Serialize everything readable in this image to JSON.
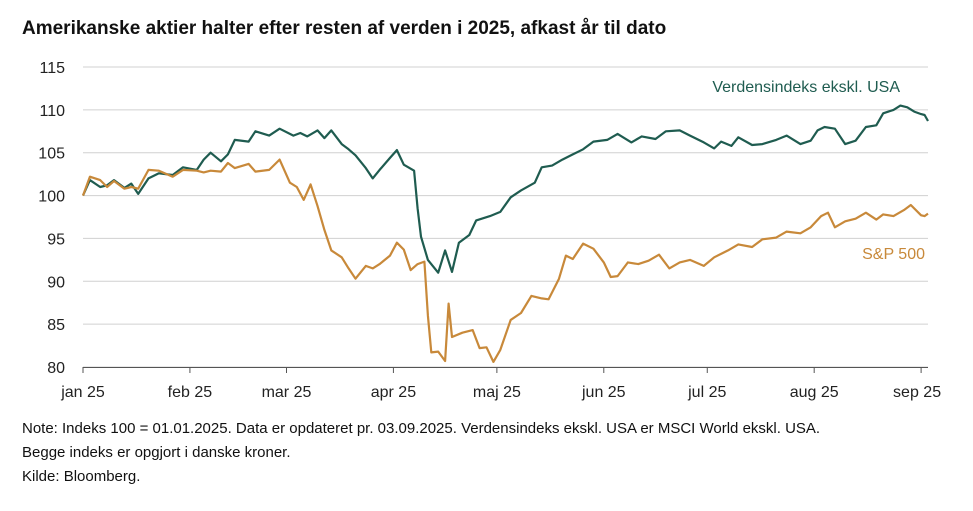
{
  "title": "Amerikanske aktier halter efter resten af verden i 2025, afkast år til dato",
  "notes": {
    "line1": "Note: Indeks 100 = 01.01.2025. Data er opdateret pr. 03.09.2025. Verdensindeks ekskl. USA er MSCI World ekskl. USA.",
    "line2": "Begge indeks er opgjort i danske kroner.",
    "source": "Kilde: Bloomberg."
  },
  "colors": {
    "world": "#1f5c50",
    "sp500": "#c8893a",
    "grid": "#d0d0d0",
    "axis": "#555555"
  },
  "chart_data": {
    "type": "line",
    "title": "Amerikanske aktier halter efter resten af verden i 2025, afkast år til dato",
    "xlabel": "",
    "ylabel": "",
    "xlim": [
      "2025-01-01",
      "2025-09-03"
    ],
    "ylim": [
      80,
      115
    ],
    "yticks": [
      80,
      85,
      90,
      95,
      100,
      105,
      110,
      115
    ],
    "xticks": [
      {
        "date": "2025-01-01",
        "label": "jan 25"
      },
      {
        "date": "2025-02-01",
        "label": "feb 25"
      },
      {
        "date": "2025-03-01",
        "label": "mar 25"
      },
      {
        "date": "2025-04-01",
        "label": "apr 25"
      },
      {
        "date": "2025-05-01",
        "label": "maj 25"
      },
      {
        "date": "2025-06-01",
        "label": "jun 25"
      },
      {
        "date": "2025-07-01",
        "label": "jul 25"
      },
      {
        "date": "2025-08-01",
        "label": "aug 25"
      },
      {
        "date": "2025-09-01",
        "label": "sep 25"
      }
    ],
    "grid": "horizontal",
    "series": [
      {
        "name": "Verdensindeks ekskl. USA",
        "color": "#1f5c50",
        "points": [
          [
            "2025-01-01",
            100.0
          ],
          [
            "2025-01-03",
            101.8
          ],
          [
            "2025-01-06",
            101.0
          ],
          [
            "2025-01-08",
            101.2
          ],
          [
            "2025-01-10",
            101.8
          ],
          [
            "2025-01-13",
            100.9
          ],
          [
            "2025-01-15",
            101.4
          ],
          [
            "2025-01-17",
            100.2
          ],
          [
            "2025-01-20",
            102.0
          ],
          [
            "2025-01-23",
            102.6
          ],
          [
            "2025-01-27",
            102.4
          ],
          [
            "2025-01-30",
            103.3
          ],
          [
            "2025-02-03",
            103.0
          ],
          [
            "2025-02-05",
            104.2
          ],
          [
            "2025-02-07",
            105.0
          ],
          [
            "2025-02-10",
            104.0
          ],
          [
            "2025-02-12",
            104.8
          ],
          [
            "2025-02-14",
            106.5
          ],
          [
            "2025-02-18",
            106.3
          ],
          [
            "2025-02-20",
            107.5
          ],
          [
            "2025-02-24",
            107.0
          ],
          [
            "2025-02-27",
            107.8
          ],
          [
            "2025-03-03",
            107.0
          ],
          [
            "2025-03-05",
            107.3
          ],
          [
            "2025-03-07",
            106.9
          ],
          [
            "2025-03-10",
            107.6
          ],
          [
            "2025-03-12",
            106.7
          ],
          [
            "2025-03-14",
            107.6
          ],
          [
            "2025-03-17",
            106.0
          ],
          [
            "2025-03-19",
            105.4
          ],
          [
            "2025-03-21",
            104.7
          ],
          [
            "2025-03-24",
            103.2
          ],
          [
            "2025-03-26",
            102.0
          ],
          [
            "2025-03-28",
            103.0
          ],
          [
            "2025-03-31",
            104.4
          ],
          [
            "2025-04-02",
            105.3
          ],
          [
            "2025-04-04",
            103.6
          ],
          [
            "2025-04-07",
            102.9
          ],
          [
            "2025-04-08",
            98.5
          ],
          [
            "2025-04-09",
            95.2
          ],
          [
            "2025-04-11",
            92.5
          ],
          [
            "2025-04-14",
            91.0
          ],
          [
            "2025-04-16",
            93.6
          ],
          [
            "2025-04-18",
            91.1
          ],
          [
            "2025-04-20",
            94.5
          ],
          [
            "2025-04-23",
            95.4
          ],
          [
            "2025-04-25",
            97.1
          ],
          [
            "2025-04-29",
            97.6
          ],
          [
            "2025-05-02",
            98.1
          ],
          [
            "2025-05-05",
            99.8
          ],
          [
            "2025-05-08",
            100.6
          ],
          [
            "2025-05-12",
            101.5
          ],
          [
            "2025-05-14",
            103.3
          ],
          [
            "2025-05-17",
            103.5
          ],
          [
            "2025-05-20",
            104.2
          ],
          [
            "2025-05-23",
            104.8
          ],
          [
            "2025-05-26",
            105.4
          ],
          [
            "2025-05-29",
            106.3
          ],
          [
            "2025-06-02",
            106.5
          ],
          [
            "2025-06-05",
            107.2
          ],
          [
            "2025-06-09",
            106.2
          ],
          [
            "2025-06-12",
            106.9
          ],
          [
            "2025-06-16",
            106.6
          ],
          [
            "2025-06-19",
            107.5
          ],
          [
            "2025-06-23",
            107.6
          ],
          [
            "2025-06-26",
            107.0
          ],
          [
            "2025-06-30",
            106.2
          ],
          [
            "2025-07-03",
            105.5
          ],
          [
            "2025-07-05",
            106.3
          ],
          [
            "2025-07-08",
            105.8
          ],
          [
            "2025-07-10",
            106.8
          ],
          [
            "2025-07-14",
            105.9
          ],
          [
            "2025-07-17",
            106.0
          ],
          [
            "2025-07-21",
            106.5
          ],
          [
            "2025-07-24",
            107.0
          ],
          [
            "2025-07-28",
            106.0
          ],
          [
            "2025-07-31",
            106.4
          ],
          [
            "2025-08-02",
            107.6
          ],
          [
            "2025-08-04",
            108.0
          ],
          [
            "2025-08-07",
            107.8
          ],
          [
            "2025-08-10",
            106.0
          ],
          [
            "2025-08-13",
            106.4
          ],
          [
            "2025-08-16",
            108.0
          ],
          [
            "2025-08-19",
            108.2
          ],
          [
            "2025-08-21",
            109.6
          ],
          [
            "2025-08-24",
            110.0
          ],
          [
            "2025-08-26",
            110.5
          ],
          [
            "2025-08-28",
            110.3
          ],
          [
            "2025-08-30",
            109.8
          ],
          [
            "2025-09-01",
            109.5
          ],
          [
            "2025-09-02",
            109.4
          ],
          [
            "2025-09-03",
            108.7
          ]
        ]
      },
      {
        "name": "S&P 500",
        "color": "#c8893a",
        "points": [
          [
            "2025-01-01",
            100.0
          ],
          [
            "2025-01-03",
            102.2
          ],
          [
            "2025-01-06",
            101.8
          ],
          [
            "2025-01-08",
            101.0
          ],
          [
            "2025-01-10",
            101.7
          ],
          [
            "2025-01-13",
            100.8
          ],
          [
            "2025-01-15",
            101.0
          ],
          [
            "2025-01-17",
            100.8
          ],
          [
            "2025-01-20",
            103.0
          ],
          [
            "2025-01-23",
            102.9
          ],
          [
            "2025-01-27",
            102.2
          ],
          [
            "2025-01-30",
            103.0
          ],
          [
            "2025-02-03",
            102.9
          ],
          [
            "2025-02-05",
            102.7
          ],
          [
            "2025-02-07",
            102.9
          ],
          [
            "2025-02-10",
            102.8
          ],
          [
            "2025-02-12",
            103.8
          ],
          [
            "2025-02-14",
            103.2
          ],
          [
            "2025-02-18",
            103.7
          ],
          [
            "2025-02-20",
            102.8
          ],
          [
            "2025-02-24",
            103.0
          ],
          [
            "2025-02-27",
            104.2
          ],
          [
            "2025-03-02",
            101.5
          ],
          [
            "2025-03-04",
            101.0
          ],
          [
            "2025-03-06",
            99.5
          ],
          [
            "2025-03-08",
            101.3
          ],
          [
            "2025-03-10",
            98.8
          ],
          [
            "2025-03-12",
            96.0
          ],
          [
            "2025-03-14",
            93.6
          ],
          [
            "2025-03-17",
            92.8
          ],
          [
            "2025-03-19",
            91.5
          ],
          [
            "2025-03-21",
            90.3
          ],
          [
            "2025-03-24",
            91.8
          ],
          [
            "2025-03-26",
            91.5
          ],
          [
            "2025-03-28",
            92.0
          ],
          [
            "2025-03-31",
            93.0
          ],
          [
            "2025-04-02",
            94.5
          ],
          [
            "2025-04-04",
            93.7
          ],
          [
            "2025-04-06",
            91.3
          ],
          [
            "2025-04-08",
            92.0
          ],
          [
            "2025-04-10",
            92.3
          ],
          [
            "2025-04-11",
            86.0
          ],
          [
            "2025-04-12",
            81.7
          ],
          [
            "2025-04-14",
            81.8
          ],
          [
            "2025-04-16",
            80.7
          ],
          [
            "2025-04-17",
            87.4
          ],
          [
            "2025-04-18",
            83.5
          ],
          [
            "2025-04-21",
            84.0
          ],
          [
            "2025-04-24",
            84.3
          ],
          [
            "2025-04-26",
            82.2
          ],
          [
            "2025-04-28",
            82.3
          ],
          [
            "2025-04-30",
            80.6
          ],
          [
            "2025-05-02",
            82.0
          ],
          [
            "2025-05-05",
            85.5
          ],
          [
            "2025-05-08",
            86.3
          ],
          [
            "2025-05-11",
            88.3
          ],
          [
            "2025-05-14",
            88.0
          ],
          [
            "2025-05-16",
            87.9
          ],
          [
            "2025-05-19",
            90.3
          ],
          [
            "2025-05-21",
            93.0
          ],
          [
            "2025-05-23",
            92.6
          ],
          [
            "2025-05-26",
            94.4
          ],
          [
            "2025-05-29",
            93.8
          ],
          [
            "2025-06-01",
            92.2
          ],
          [
            "2025-06-03",
            90.5
          ],
          [
            "2025-06-05",
            90.6
          ],
          [
            "2025-06-08",
            92.2
          ],
          [
            "2025-06-11",
            92.0
          ],
          [
            "2025-06-14",
            92.4
          ],
          [
            "2025-06-17",
            93.1
          ],
          [
            "2025-06-20",
            91.5
          ],
          [
            "2025-06-23",
            92.2
          ],
          [
            "2025-06-26",
            92.5
          ],
          [
            "2025-06-30",
            91.8
          ],
          [
            "2025-07-03",
            92.8
          ],
          [
            "2025-07-07",
            93.6
          ],
          [
            "2025-07-10",
            94.3
          ],
          [
            "2025-07-14",
            94.0
          ],
          [
            "2025-07-17",
            94.9
          ],
          [
            "2025-07-21",
            95.1
          ],
          [
            "2025-07-24",
            95.8
          ],
          [
            "2025-07-28",
            95.6
          ],
          [
            "2025-07-31",
            96.3
          ],
          [
            "2025-08-03",
            97.6
          ],
          [
            "2025-08-05",
            98.0
          ],
          [
            "2025-08-07",
            96.3
          ],
          [
            "2025-08-10",
            97.0
          ],
          [
            "2025-08-13",
            97.3
          ],
          [
            "2025-08-16",
            98.0
          ],
          [
            "2025-08-19",
            97.2
          ],
          [
            "2025-08-21",
            97.8
          ],
          [
            "2025-08-24",
            97.6
          ],
          [
            "2025-08-27",
            98.3
          ],
          [
            "2025-08-29",
            98.9
          ],
          [
            "2025-09-01",
            97.7
          ],
          [
            "2025-09-02",
            97.6
          ],
          [
            "2025-09-03",
            97.9
          ]
        ]
      }
    ]
  }
}
